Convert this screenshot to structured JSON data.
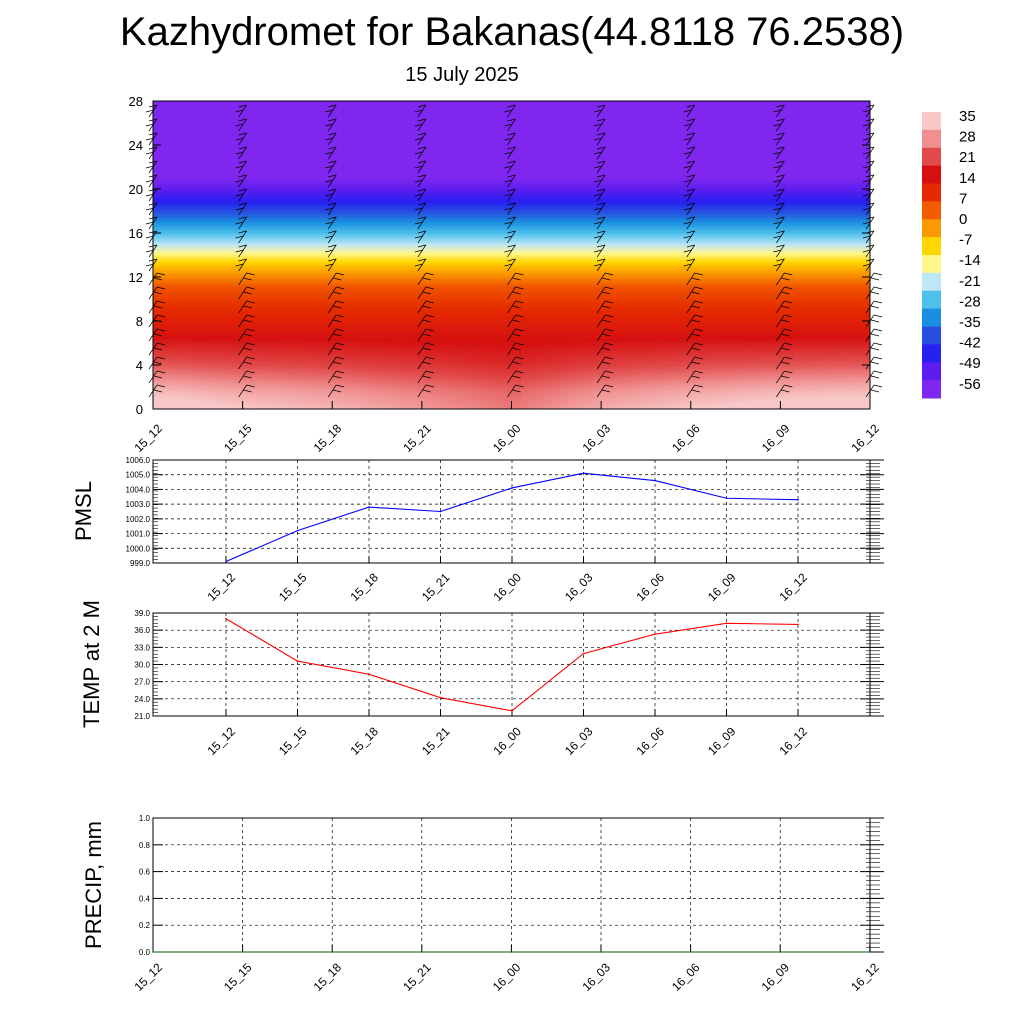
{
  "title": "Kazhydromet for Bakanas(44.8118 76.2538)",
  "subtitle": "15 July 2025",
  "time_labels": [
    "15_12",
    "15_15",
    "15_18",
    "15_21",
    "16_00",
    "16_03",
    "16_06",
    "16_09",
    "16_12"
  ],
  "chart_data": [
    {
      "type": "heatmap",
      "name": "cross-section",
      "x": [
        "15_12",
        "15_15",
        "15_18",
        "15_21",
        "16_00",
        "16_03",
        "16_06",
        "16_09",
        "16_12"
      ],
      "ylim": [
        0,
        28
      ],
      "yticks": [
        0,
        4,
        8,
        12,
        16,
        20,
        24,
        28
      ],
      "colorbar_ticks": [
        35,
        28,
        21,
        14,
        7,
        0,
        -7,
        -14,
        -21,
        -28,
        -35,
        -42,
        -49,
        -56
      ],
      "colorbar_colors": [
        "#f8c8c8",
        "#f08f8f",
        "#e24a4a",
        "#d61010",
        "#e52a00",
        "#f25c00",
        "#fb9a00",
        "#ffd700",
        "#fff68c",
        "#bfe6f5",
        "#4ec0ec",
        "#1a8fe0",
        "#2850e0",
        "#2620f0",
        "#5c1df0",
        "#7f27ee"
      ],
      "profile_levels": [
        0,
        1.5,
        4,
        8,
        11,
        13,
        15,
        17,
        19,
        21,
        22.5,
        24,
        28
      ],
      "profile_values": [
        33,
        30,
        22,
        13,
        6,
        -5,
        -20,
        -32,
        -45,
        -56,
        -60,
        -62,
        -62
      ],
      "surface_anomaly": [
        5,
        2,
        0,
        -3,
        -6,
        -1,
        2,
        4,
        5
      ],
      "grid": false
    },
    {
      "type": "line",
      "name": "PMSL",
      "ylabel": "PMSL",
      "categories": [
        "15_12",
        "15_15",
        "15_18",
        "15_21",
        "16_00",
        "16_03",
        "16_06",
        "16_09",
        "16_12"
      ],
      "values": [
        999.1,
        1001.2,
        1002.8,
        1002.5,
        1004.1,
        1005.1,
        1004.6,
        1003.4,
        1003.3
      ],
      "ylim": [
        999.0,
        1006.0
      ],
      "yticks": [
        "999.0",
        "1000.0",
        "1001.0",
        "1002.0",
        "1003.0",
        "1004.0",
        "1005.0",
        "1006.0"
      ],
      "color": "#0000ff",
      "grid": true
    },
    {
      "type": "line",
      "name": "TEMP at 2 M",
      "ylabel": "TEMP at 2 M",
      "categories": [
        "15_12",
        "15_15",
        "15_18",
        "15_21",
        "16_00",
        "16_03",
        "16_06",
        "16_09",
        "16_12"
      ],
      "values": [
        38.0,
        30.6,
        28.3,
        24.2,
        21.9,
        31.9,
        35.3,
        37.2,
        37.0
      ],
      "ylim": [
        21.0,
        39.0
      ],
      "yticks": [
        "21.0",
        "24.0",
        "27.0",
        "30.0",
        "33.0",
        "36.0",
        "39.0"
      ],
      "color": "#ff0000",
      "grid": true
    },
    {
      "type": "line",
      "name": "PRECIP, mm",
      "ylabel": "PRECIP, mm",
      "categories": [
        "15_12",
        "15_15",
        "15_18",
        "15_21",
        "16_00",
        "16_03",
        "16_06",
        "16_09",
        "16_12"
      ],
      "values": [
        0,
        0,
        0,
        0,
        0,
        0,
        0,
        0,
        0
      ],
      "ylim": [
        0.0,
        1.0
      ],
      "yticks": [
        "0.0",
        "0.2",
        "0.4",
        "0.6",
        "0.8",
        "1.0"
      ],
      "color": "#006400",
      "grid": true
    }
  ]
}
